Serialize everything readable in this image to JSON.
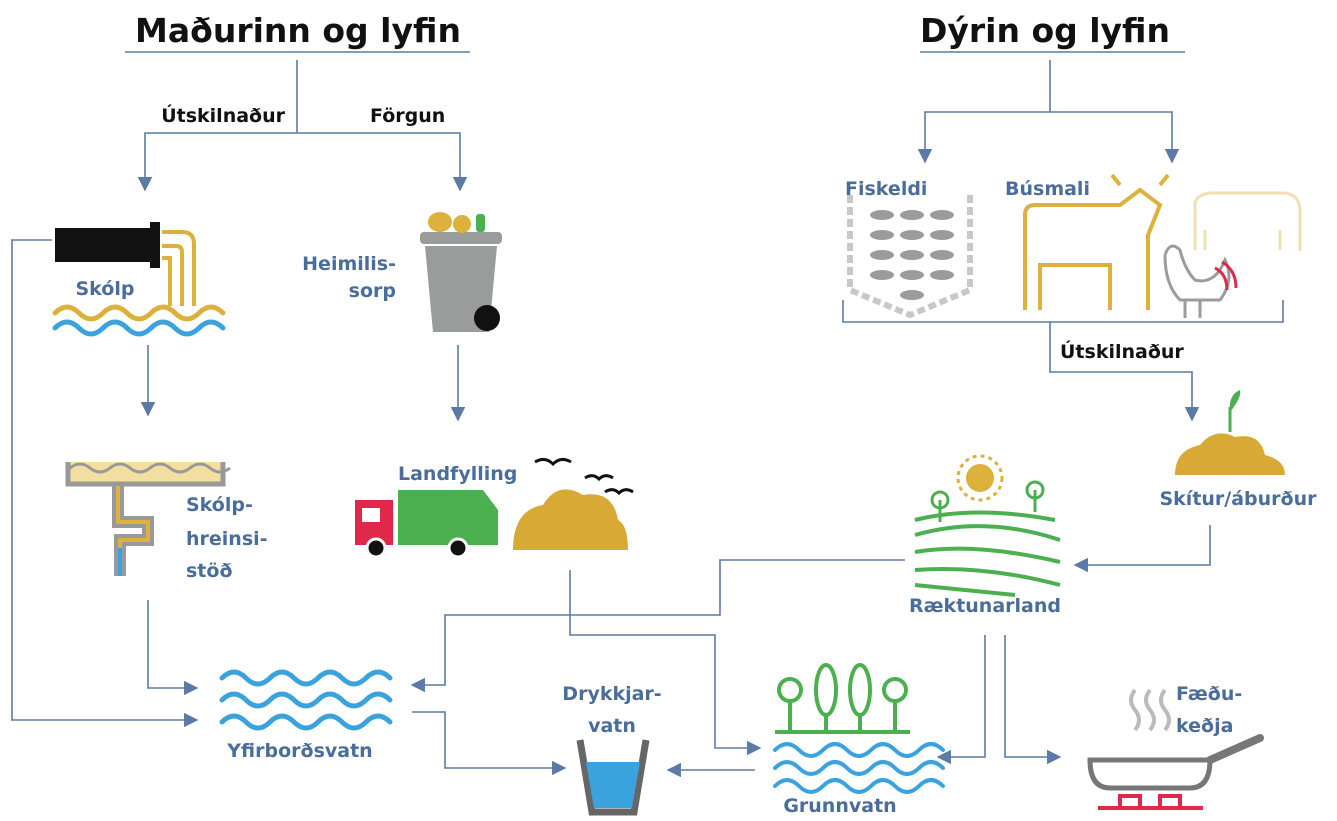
{
  "titles": [
    "Maðurinn og lyfin",
    "Dýrin og lyfin"
  ],
  "edge_labels": [
    "Útskilnaður",
    "Förgun",
    "Útskilnaður"
  ],
  "nodes": [
    {
      "lines": [
        "Skólp"
      ]
    },
    {
      "lines": [
        "Heimilis-",
        "sorp"
      ]
    },
    {
      "lines": [
        "Skólp-",
        "hreinsi-",
        "stöð"
      ]
    },
    {
      "lines": [
        "Landfylling"
      ]
    },
    {
      "lines": [
        "Fiskeldi"
      ]
    },
    {
      "lines": [
        "Búsmali"
      ]
    },
    {
      "lines": [
        "Skítur/áburður"
      ]
    },
    {
      "lines": [
        "Ræktunarland"
      ]
    },
    {
      "lines": [
        "Yfirborðsvatn"
      ]
    },
    {
      "lines": [
        "Drykkjar-",
        "vatn"
      ]
    },
    {
      "lines": [
        "Grunnvatn"
      ]
    },
    {
      "lines": [
        "Fæðu-",
        "keðja"
      ]
    }
  ]
}
